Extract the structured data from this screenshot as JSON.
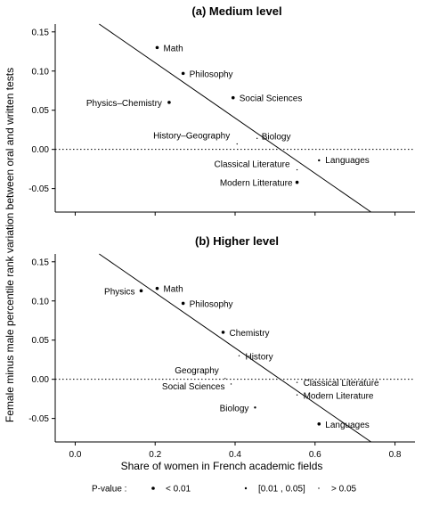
{
  "figure": {
    "ylabel": "Female minus male percentile rank variation between oral and written tests",
    "xlabel": "Share of women in French academic fields"
  },
  "legend": {
    "title": "P-value :",
    "items": [
      {
        "label": "< 0.01",
        "size": "large"
      },
      {
        "label": "[0.01 , 0.05]",
        "size": "medium"
      },
      {
        "label": "> 0.05",
        "size": "small"
      }
    ]
  },
  "chart_data": [
    {
      "type": "scatter",
      "title": "(a) Medium level",
      "xlim": [
        -0.05,
        0.85
      ],
      "ylim": [
        -0.08,
        0.16
      ],
      "yticks": [
        "-0.05",
        "0.00",
        "0.05",
        "0.10",
        "0.15"
      ],
      "xticks": [],
      "reference_line": {
        "y": 0,
        "style": "dotted"
      },
      "fit_line": {
        "points": [
          [
            0.06,
            0.16
          ],
          [
            0.74,
            -0.08
          ]
        ]
      },
      "points": [
        {
          "label": "Math",
          "x": 0.205,
          "y": 0.13,
          "p": "< 0.01"
        },
        {
          "label": "Philosophy",
          "x": 0.27,
          "y": 0.097,
          "p": "< 0.01"
        },
        {
          "label": "Social Sciences",
          "x": 0.395,
          "y": 0.066,
          "p": "< 0.01"
        },
        {
          "label": "Physics–Chemistry",
          "x": 0.235,
          "y": 0.06,
          "p": "< 0.01"
        },
        {
          "label": "History–Geography",
          "x": 0.405,
          "y": 0.007,
          "p": "> 0.05"
        },
        {
          "label": "Biology",
          "x": 0.455,
          "y": 0.014,
          "p": "> 0.05"
        },
        {
          "label": "Languages",
          "x": 0.61,
          "y": -0.014,
          "p": "[0.01 , 0.05]"
        },
        {
          "label": "Classical Literature",
          "x": 0.555,
          "y": -0.026,
          "p": "> 0.05"
        },
        {
          "label": "Modern Litterature",
          "x": 0.555,
          "y": -0.042,
          "p": "< 0.01"
        }
      ]
    },
    {
      "type": "scatter",
      "title": "(b) Higher level",
      "xlim": [
        -0.05,
        0.85
      ],
      "ylim": [
        -0.08,
        0.16
      ],
      "yticks": [
        "-0.05",
        "0.00",
        "0.05",
        "0.10",
        "0.15"
      ],
      "xticks": [
        "0.0",
        "0.2",
        "0.4",
        "0.6",
        "0.8"
      ],
      "reference_line": {
        "y": 0,
        "style": "dotted"
      },
      "fit_line": {
        "points": [
          [
            0.06,
            0.16
          ],
          [
            0.74,
            -0.08
          ]
        ]
      },
      "points": [
        {
          "label": "Physics",
          "x": 0.165,
          "y": 0.113,
          "p": "< 0.01"
        },
        {
          "label": "Math",
          "x": 0.205,
          "y": 0.116,
          "p": "< 0.01"
        },
        {
          "label": "Philosophy",
          "x": 0.27,
          "y": 0.097,
          "p": "< 0.01"
        },
        {
          "label": "Chemistry",
          "x": 0.37,
          "y": 0.06,
          "p": "< 0.01"
        },
        {
          "label": "History",
          "x": 0.41,
          "y": 0.03,
          "p": "> 0.05"
        },
        {
          "label": "Geography",
          "x": 0.375,
          "y": 0.001,
          "p": "> 0.05"
        },
        {
          "label": "Social Sciences",
          "x": 0.39,
          "y": -0.006,
          "p": "> 0.05"
        },
        {
          "label": "Classical Literature",
          "x": 0.555,
          "y": -0.004,
          "p": "> 0.05"
        },
        {
          "label": "Modern Literature",
          "x": 0.555,
          "y": -0.02,
          "p": "> 0.05"
        },
        {
          "label": "Biology",
          "x": 0.45,
          "y": -0.036,
          "p": "[0.01 , 0.05]"
        },
        {
          "label": "Languages",
          "x": 0.61,
          "y": -0.057,
          "p": "< 0.01"
        }
      ]
    }
  ]
}
